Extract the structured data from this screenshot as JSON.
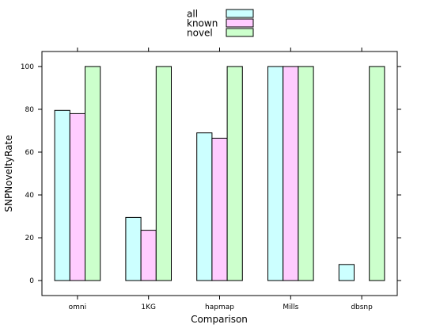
{
  "chart_data": {
    "type": "bar",
    "title": "",
    "xlabel": "Comparison",
    "ylabel": "SNPNoveltyRate",
    "ylim": [
      -7,
      107
    ],
    "yticks": [
      0,
      20,
      40,
      60,
      80,
      100
    ],
    "grid": false,
    "legend_position": "top-center",
    "categories": [
      "omni",
      "1KG",
      "hapmap",
      "Mills",
      "dbsnp"
    ],
    "series": [
      {
        "name": "all",
        "color": "#ccffff",
        "values": [
          79.5,
          29.5,
          69,
          100,
          7.5
        ]
      },
      {
        "name": "known",
        "color": "#ffccff",
        "values": [
          78,
          23.5,
          66.5,
          100,
          0
        ]
      },
      {
        "name": "novel",
        "color": "#ccffcc",
        "values": [
          100,
          100,
          100,
          100,
          100
        ]
      }
    ]
  }
}
